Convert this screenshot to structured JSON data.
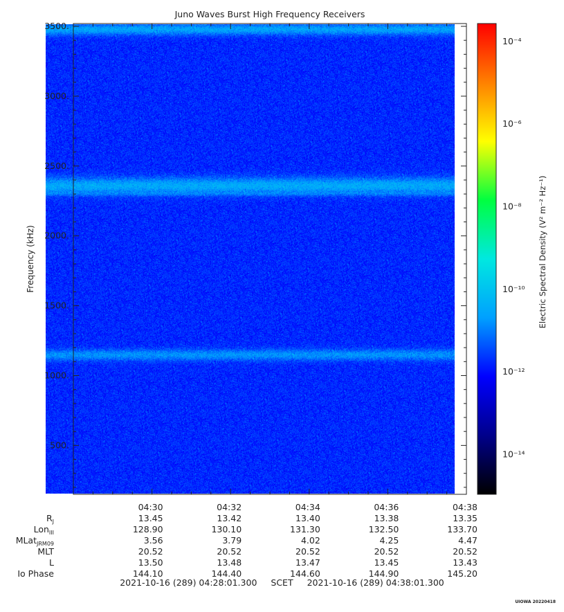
{
  "chart_data": {
    "type": "heatmap",
    "title": "Juno Waves Burst High Frequency Receivers",
    "ylabel": "Frequency (kHz)",
    "ylim": [
      150,
      3520
    ],
    "yticks": [
      "500.",
      "1000.",
      "1500.",
      "2000.",
      "2500.",
      "3000.",
      "3500."
    ],
    "y_tick_values": [
      500,
      1000,
      1500,
      2000,
      2500,
      3000,
      3500
    ],
    "x_tick_labels": [
      "04:30",
      "04:32",
      "04:34",
      "04:36",
      "04:38"
    ],
    "x_range_minutes": [
      28.0,
      38.0
    ],
    "x_tick_minutes": [
      30,
      32,
      34,
      36,
      38
    ],
    "data_x_range_minutes": [
      27.3,
      37.7
    ],
    "colorbar": {
      "label": "Electric Spectral Density (V² m⁻² Hz⁻¹)",
      "range_log10": [
        -15,
        -3.6
      ],
      "tick_labels": [
        "10⁻¹⁴",
        "10⁻¹²",
        "10⁻¹⁰",
        "10⁻⁸",
        "10⁻⁶",
        "10⁻⁴"
      ],
      "tick_log10": [
        -14,
        -12,
        -10,
        -8,
        -6,
        -4
      ],
      "colors": [
        "#000000",
        "#00008b",
        "#0000ff",
        "#00a0ff",
        "#00e8e0",
        "#00ff40",
        "#ffff00",
        "#ff8000",
        "#ff0000"
      ]
    },
    "background_level_log10": -11.8,
    "bands": [
      {
        "freq_khz": 3480,
        "width_khz": 40,
        "level_log10": -10.6
      },
      {
        "freq_khz": 2360,
        "width_khz": 60,
        "level_log10": -10.5
      },
      {
        "freq_khz": 2310,
        "width_khz": 25,
        "level_log10": -10.9
      },
      {
        "freq_khz": 1150,
        "width_khz": 40,
        "level_log10": -10.8
      }
    ]
  },
  "ephemeris": {
    "columns": [
      "04:30",
      "04:32",
      "04:34",
      "04:36",
      "04:38"
    ],
    "rows": [
      {
        "label": "R",
        "sub": "J",
        "values": [
          "13.45",
          "13.42",
          "13.40",
          "13.38",
          "13.35"
        ]
      },
      {
        "label": "Lon",
        "sub": "III",
        "values": [
          "128.90",
          "130.10",
          "131.30",
          "132.50",
          "133.70"
        ]
      },
      {
        "label": "MLat",
        "sub": "JRM09",
        "values": [
          "3.56",
          "3.79",
          "4.02",
          "4.25",
          "4.47"
        ]
      },
      {
        "label": "MLT",
        "sub": "",
        "values": [
          "20.52",
          "20.52",
          "20.52",
          "20.52",
          "20.52"
        ]
      },
      {
        "label": "L",
        "sub": "",
        "values": [
          "13.50",
          "13.48",
          "13.47",
          "13.45",
          "13.43"
        ]
      },
      {
        "label": "Io Phase",
        "sub": "",
        "values": [
          "144.10",
          "144.40",
          "144.60",
          "144.90",
          "145.20"
        ]
      }
    ]
  },
  "footer": {
    "start": "2021-10-16 (289) 04:28:01.300",
    "frame": "SCET",
    "end": "2021-10-16 (289) 04:38:01.300"
  },
  "credit": "UIOWA 20220418"
}
